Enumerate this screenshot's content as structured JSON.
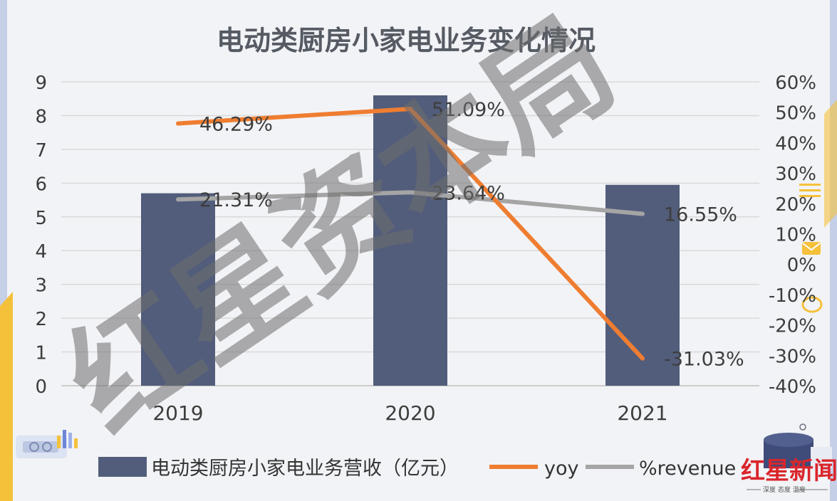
{
  "chart_data": {
    "type": "bar",
    "title": "电动类厨房小家电业务变化情况",
    "categories": [
      "2019",
      "2020",
      "2021"
    ],
    "left_axis": {
      "min": 0,
      "max": 9,
      "ticks": [
        "0",
        "1",
        "2",
        "3",
        "4",
        "5",
        "6",
        "7",
        "8",
        "9"
      ]
    },
    "right_axis": {
      "min": -40,
      "max": 60,
      "ticks": [
        "-40%",
        "-30%",
        "-20%",
        "-10%",
        "0%",
        "10%",
        "20%",
        "30%",
        "40%",
        "50%",
        "60%"
      ]
    },
    "series": [
      {
        "name": "电动类厨房小家电业务营收（亿元）",
        "kind": "bar",
        "axis": "left",
        "color": "#525d7b",
        "values": [
          5.7,
          8.6,
          5.95
        ]
      },
      {
        "name": "yoy",
        "kind": "line",
        "axis": "right",
        "color": "#ef7d31",
        "values": [
          46.29,
          51.09,
          -31.03
        ],
        "labels": [
          "46.29%",
          "51.09%",
          "-31.03%"
        ]
      },
      {
        "name": "%revenue",
        "kind": "line",
        "axis": "right",
        "color": "#a5a5a5",
        "values": [
          21.31,
          23.64,
          16.55
        ],
        "labels": [
          "21.31%",
          "23.64%",
          "16.55%"
        ]
      }
    ],
    "grid": true,
    "legend_position": "bottom"
  },
  "watermark": {
    "text": "红星资本局"
  },
  "logo": {
    "main": "红星新闻",
    "sub": "深度 态度 温度"
  },
  "colors": {
    "background": "#f2f3f6",
    "bar": "#525d7b",
    "yoy": "#ef7d31",
    "revenue": "#a5a5a5",
    "grid": "#d9d9d9"
  }
}
